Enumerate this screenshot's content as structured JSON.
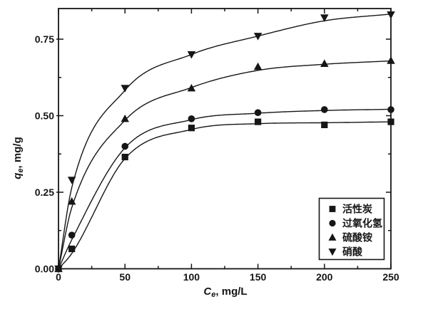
{
  "figure": {
    "background": "#ffffff",
    "ink_color": "#161616"
  },
  "chart_data": {
    "type": "line",
    "title": "",
    "xlabel": {
      "symbol": "C",
      "subscript": "e",
      "unit": ", mg/L",
      "text": "Ce, mg/L"
    },
    "ylabel": {
      "symbol": "q",
      "subscript": "e",
      "unit": ", mg/g",
      "text": "qe, mg/g"
    },
    "xlim": [
      0,
      250
    ],
    "ylim": [
      0,
      0.85
    ],
    "grid": false,
    "legend_position": "inside-lower-right",
    "x_major_ticks": [
      0,
      50,
      100,
      150,
      200,
      250
    ],
    "x_minor_ticks": [
      25,
      75,
      125,
      175,
      225
    ],
    "y_major_ticks": [
      {
        "v": 0.0,
        "label": "0.00"
      },
      {
        "v": 0.25,
        "label": "0.25"
      },
      {
        "v": 0.5,
        "label": "0.50"
      },
      {
        "v": 0.75,
        "label": "0.75"
      }
    ],
    "y_minor_ticks": [
      0.125,
      0.375,
      0.625
    ],
    "x": [
      0,
      10,
      50,
      100,
      150,
      200,
      250
    ],
    "series": [
      {
        "name": "活性炭",
        "id": "activated-carbon",
        "marker": "square",
        "values": [
          0,
          0.065,
          0.365,
          0.46,
          0.48,
          0.47,
          0.48
        ],
        "curve": [
          0,
          0.05,
          0.36,
          0.455,
          0.474,
          0.477,
          0.48
        ]
      },
      {
        "name": "过氧化氢",
        "id": "hydrogen-peroxide",
        "marker": "circle",
        "values": [
          0,
          0.11,
          0.4,
          0.49,
          0.51,
          0.52,
          0.52
        ],
        "curve": [
          0,
          0.095,
          0.395,
          0.487,
          0.508,
          0.517,
          0.521
        ]
      },
      {
        "name": "硫酸铵",
        "id": "ammonium-sulfate",
        "marker": "triangle-up",
        "values": [
          0,
          0.22,
          0.49,
          0.59,
          0.66,
          0.67,
          0.68
        ],
        "curve": [
          0,
          0.2,
          0.485,
          0.592,
          0.648,
          0.668,
          0.679
        ]
      },
      {
        "name": "硝酸",
        "id": "nitric-acid",
        "marker": "triangle-down",
        "values": [
          0,
          0.29,
          0.59,
          0.7,
          0.76,
          0.82,
          0.83
        ],
        "curve": [
          0,
          0.265,
          0.583,
          0.7,
          0.76,
          0.81,
          0.832
        ]
      }
    ]
  }
}
